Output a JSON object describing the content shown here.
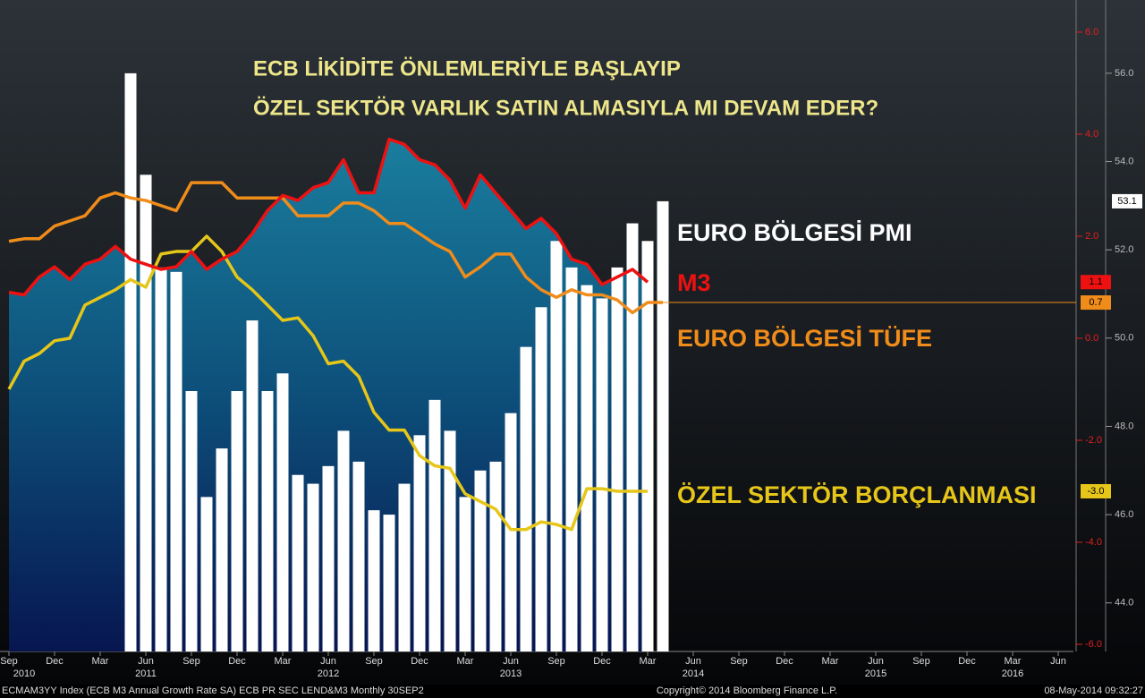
{
  "chart_data": {
    "type": "bar_line",
    "title_lines": [
      "ECB LİKİDİTE ÖNLEMLERİYLE BAŞLAYIP",
      "ÖZEL SEKTÖR VARLIK SATIN ALMASIYLA MI DEVAM EDER?"
    ],
    "categories": [
      "Sep",
      null,
      null,
      "Dec",
      null,
      null,
      "Mar",
      null,
      null,
      "Jun",
      null,
      null,
      "Sep",
      null,
      null,
      "Dec",
      null,
      null,
      "Mar",
      null,
      null,
      "Jun",
      null,
      null,
      "Sep",
      null,
      null,
      "Dec",
      null,
      null,
      "Mar",
      null,
      null,
      "Jun",
      null,
      null,
      "Sep",
      null,
      null,
      "Dec",
      null,
      null,
      "Mar",
      null,
      null,
      "Jun",
      null,
      null,
      "Sep",
      null,
      null,
      "Dec",
      null,
      null,
      "Mar",
      null,
      null,
      "Jun",
      null,
      null,
      "Sep",
      null,
      null,
      "Dec",
      null,
      null,
      "Mar",
      null,
      null,
      "Jun"
    ],
    "years": [
      null,
      "2010",
      null,
      null,
      null,
      null,
      null,
      null,
      null,
      "2011",
      null,
      null,
      null,
      null,
      null,
      null,
      null,
      null,
      null,
      null,
      null,
      "2012",
      null,
      null,
      null,
      null,
      null,
      null,
      null,
      null,
      null,
      null,
      null,
      "2013",
      null,
      null,
      null,
      null,
      null,
      null,
      null,
      null,
      null,
      null,
      null,
      "2014",
      null,
      null,
      null,
      null,
      null,
      null,
      null,
      null,
      null,
      null,
      null,
      "2015",
      null,
      null,
      null,
      null,
      null,
      null,
      null,
      null,
      "2016",
      null,
      null,
      null
    ],
    "series": [
      {
        "name": "EURO BÖLGESİ PMI",
        "kind": "bar",
        "axis": "y2",
        "color": "#ffffff",
        "end_label": "53.1",
        "values": [
          null,
          null,
          null,
          null,
          null,
          null,
          null,
          null,
          56.0,
          53.7,
          51.6,
          51.5,
          48.8,
          46.4,
          47.5,
          48.8,
          50.4,
          48.8,
          49.2,
          46.9,
          46.7,
          47.1,
          47.9,
          47.2,
          46.1,
          46.0,
          46.7,
          47.8,
          48.6,
          47.9,
          46.4,
          47.0,
          47.2,
          48.3,
          49.8,
          50.7,
          52.2,
          51.6,
          51.2,
          50.9,
          51.6,
          52.6,
          52.2,
          53.1,
          null,
          null,
          null,
          null,
          null,
          null,
          null,
          null,
          null,
          null,
          null,
          null,
          null,
          null,
          null,
          null,
          null,
          null,
          null,
          null,
          null,
          null,
          null,
          null,
          null,
          null
        ]
      },
      {
        "name": "M3",
        "kind": "area_line",
        "axis": "y",
        "color": "#ee1111",
        "end_label": "1.1",
        "values": [
          0.9,
          0.85,
          1.2,
          1.4,
          1.15,
          1.45,
          1.55,
          1.8,
          1.55,
          1.45,
          1.35,
          1.4,
          1.7,
          1.35,
          1.55,
          1.7,
          2.05,
          2.5,
          2.8,
          2.7,
          2.95,
          3.05,
          3.5,
          2.85,
          2.85,
          3.9,
          3.8,
          3.5,
          3.4,
          3.1,
          2.55,
          3.2,
          2.85,
          2.5,
          2.15,
          2.35,
          2.05,
          1.55,
          1.45,
          1.05,
          1.2,
          1.35,
          1.1,
          null,
          null,
          null,
          null,
          null,
          null,
          null,
          null,
          null,
          null,
          null,
          null,
          null,
          null,
          null,
          null,
          null,
          null,
          null,
          null,
          null,
          null,
          null,
          null,
          null,
          null,
          null
        ]
      },
      {
        "name": "EURO BÖLGESİ TÜFE",
        "kind": "line",
        "axis": "y",
        "color": "#f08c1a",
        "end_label": "0.7",
        "values": [
          1.9,
          1.95,
          1.95,
          2.2,
          2.3,
          2.4,
          2.75,
          2.85,
          2.75,
          2.7,
          2.6,
          2.5,
          3.05,
          3.05,
          3.05,
          2.75,
          2.75,
          2.75,
          2.75,
          2.4,
          2.4,
          2.4,
          2.65,
          2.65,
          2.5,
          2.25,
          2.25,
          2.05,
          1.85,
          1.7,
          1.2,
          1.4,
          1.65,
          1.65,
          1.2,
          0.95,
          0.8,
          0.95,
          0.85,
          0.85,
          0.75,
          0.5,
          0.7,
          0.7,
          null,
          null,
          null,
          null,
          null,
          null,
          null,
          null,
          null,
          null,
          null,
          null,
          null,
          null,
          null,
          null,
          null,
          null,
          null,
          null,
          null,
          null,
          null,
          null,
          null,
          null
        ]
      },
      {
        "name": "ÖZEL SEKTÖR BORÇLANMASI",
        "kind": "line",
        "axis": "y",
        "color": "#e6c619",
        "end_label": "-3.0",
        "values": [
          -1.0,
          -0.45,
          -0.3,
          -0.05,
          0.0,
          0.65,
          0.8,
          0.95,
          1.15,
          1.0,
          1.65,
          1.7,
          1.7,
          2.0,
          1.7,
          1.2,
          0.95,
          0.65,
          0.35,
          0.4,
          0.05,
          -0.5,
          -0.45,
          -0.75,
          -1.45,
          -1.8,
          -1.8,
          -2.3,
          -2.5,
          -2.55,
          -3.05,
          -3.2,
          -3.35,
          -3.75,
          -3.75,
          -3.6,
          -3.65,
          -3.75,
          -2.95,
          -2.95,
          -3.0,
          -3.0,
          -3.0,
          null,
          null,
          null,
          null,
          null,
          null,
          null,
          null,
          null,
          null,
          null,
          null,
          null,
          null,
          null,
          null,
          null,
          null,
          null,
          null,
          null,
          null,
          null,
          null,
          null,
          null,
          null
        ]
      }
    ],
    "ylim": [
      -6.14,
      6.63
    ],
    "yticks": [
      {
        "value": 6,
        "label": "6.0"
      },
      {
        "value": 4,
        "label": "4.0"
      },
      {
        "value": 2,
        "label": "2.0"
      },
      {
        "value": 0,
        "label": "0.0"
      },
      {
        "value": -2,
        "label": "-2.0"
      },
      {
        "value": -4,
        "label": "-4.0"
      },
      {
        "value": -6,
        "label": "-6.0"
      }
    ],
    "y2lim": [
      42.9,
      57.66
    ],
    "y2ticks": [
      {
        "value": 56,
        "label": "56.0"
      },
      {
        "value": 54,
        "label": "54.0"
      },
      {
        "value": 52,
        "label": "52.0"
      },
      {
        "value": 50,
        "label": "50.0"
      },
      {
        "value": 48,
        "label": "48.0"
      },
      {
        "value": 46,
        "label": "46.0"
      },
      {
        "value": 44,
        "label": "44.0"
      }
    ],
    "footer_left": "ECMAM3YY Index (ECB M3 Annual Growth Rate SA) ECB PR SEC LEND&M3  Monthly 30SEP2",
    "footer_center": "Copyright© 2014 Bloomberg Finance L.P.",
    "footer_right": "08-May-2014 09:32:27"
  }
}
